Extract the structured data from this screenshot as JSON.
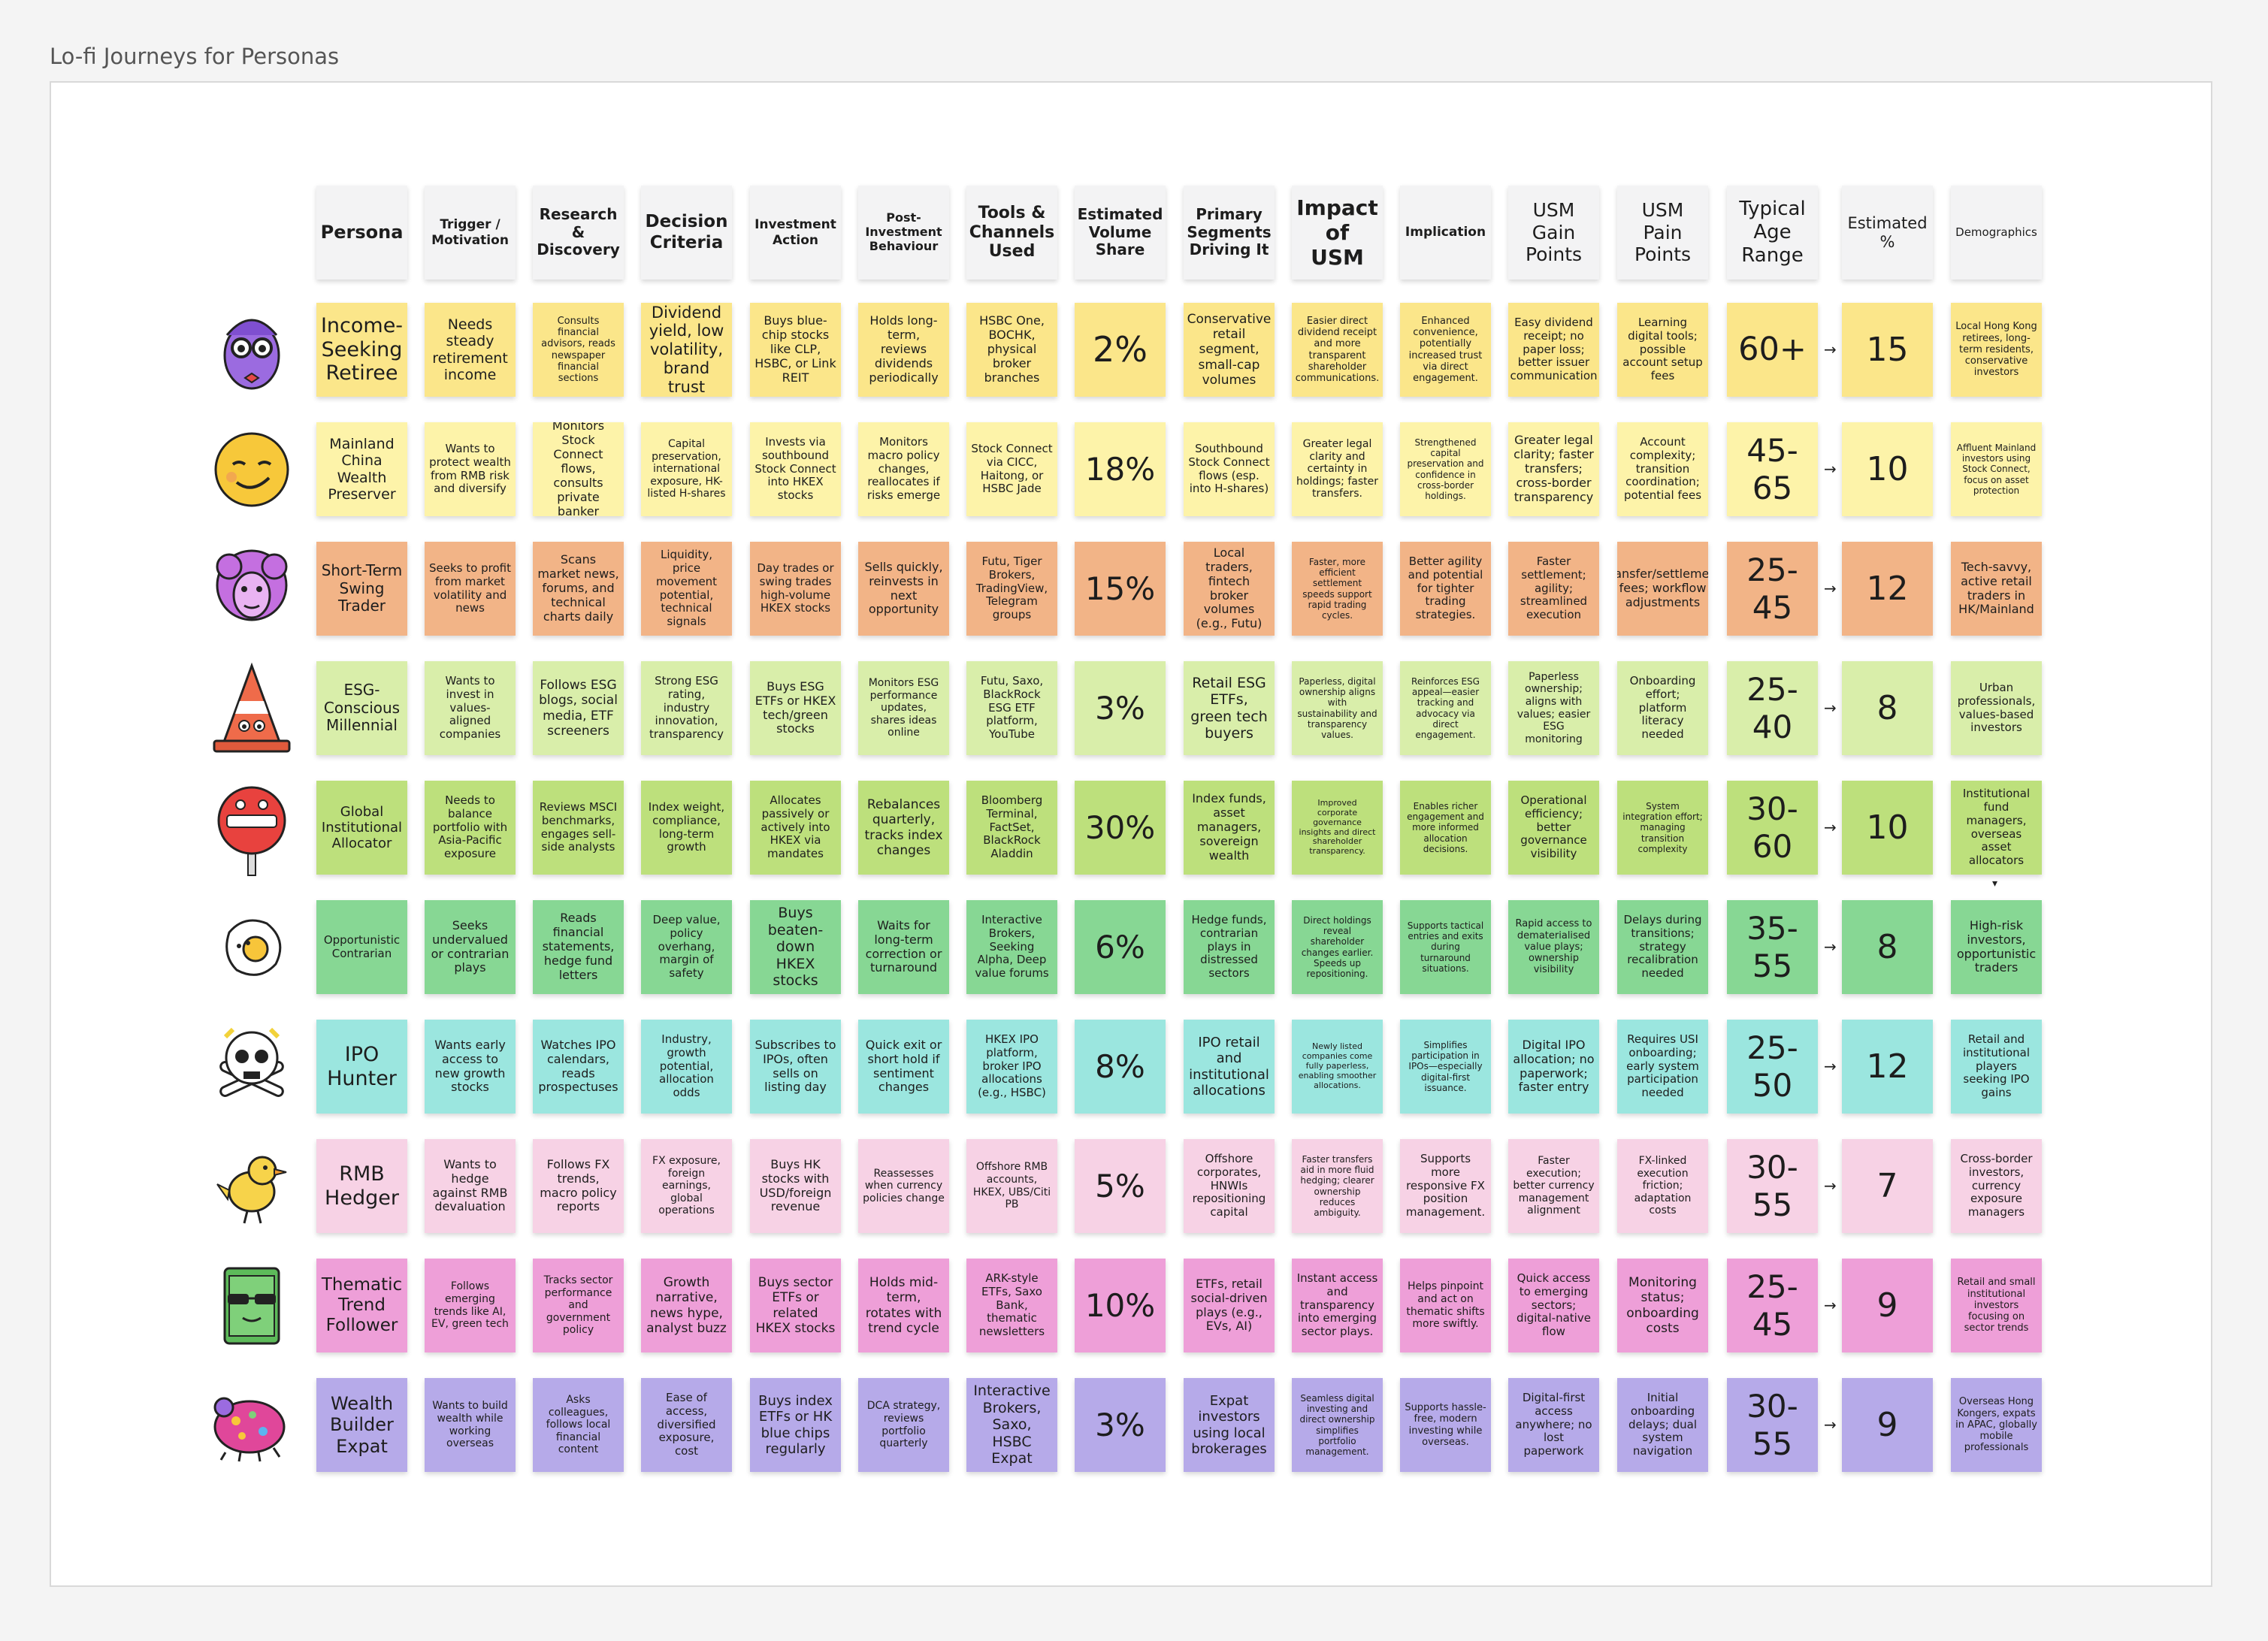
{
  "board": {
    "title": "Lo-fi Journeys for Personas"
  },
  "columns": [
    {
      "label": "Persona",
      "size": 24
    },
    {
      "label": "Trigger / Motivation",
      "size": 17
    },
    {
      "label": "Research & Discovery",
      "size": 20
    },
    {
      "label": "Decision Criteria",
      "size": 23
    },
    {
      "label": "Investment Action",
      "size": 17
    },
    {
      "label": "Post-Investment Behaviour",
      "size": 16
    },
    {
      "label": "Tools & Channels Used",
      "size": 22
    },
    {
      "label": "Estimated Volume Share",
      "size": 20
    },
    {
      "label": "Primary Segments Driving It",
      "size": 20
    },
    {
      "label": "Impact of USM",
      "size": 28
    },
    {
      "label": "Implication",
      "size": 17
    },
    {
      "label": "USM Gain Points",
      "size": 25
    },
    {
      "label": "USM Pain Points",
      "size": 25
    },
    {
      "label": "Typical Age Range",
      "size": 26
    },
    {
      "label": "Estimated %",
      "size": 21
    },
    {
      "label": "Demographics",
      "size": 15
    }
  ],
  "rows": [
    {
      "color": "#fbe68a",
      "avatar": "purple-owl-glasses-icon",
      "cells": [
        "Income-Seeking Retiree",
        "Needs steady retirement income",
        "Consults financial advisors, reads newspaper financial sections",
        "Dividend yield, low volatility, brand trust",
        "Buys blue-chip stocks like CLP, HSBC, or Link REIT",
        "Holds long-term, reviews dividends periodically",
        "HSBC One, BOCHK, physical broker branches",
        "2%",
        "Conservative retail segment, small-cap volumes",
        "Easier direct dividend receipt and more transparent shareholder communications.",
        "Enhanced convenience, potentially increased trust via direct engagement.",
        "Easy dividend receipt; no paper loss; better issuer communication",
        "Learning digital tools; possible account setup fees",
        "60+",
        "15",
        "Local Hong Kong retirees, long-term residents, conservative investors"
      ],
      "sizes": [
        27,
        19,
        13,
        21,
        16,
        16,
        16,
        46,
        17,
        13,
        13,
        15,
        15,
        43,
        44,
        13
      ]
    },
    {
      "color": "#fdf3a9",
      "avatar": "smiling-sun-face-icon",
      "cells": [
        "Mainland China Wealth Preserver",
        "Wants to protect wealth from RMB risk and diversify",
        "Monitors Stock Connect flows, consults private banker",
        "Capital preservation, international exposure, HK-listed H-shares",
        "Invests via southbound Stock Connect into HKEX stocks",
        "Monitors macro policy changes, reallocates if risks emerge",
        "Stock Connect via CICC, Haitong, or HSBC Jade",
        "18%",
        "Southbound Stock Connect flows (esp. into H-shares)",
        "Greater legal clarity and certainty in holdings; faster transfers.",
        "Strengthened capital preservation and confidence in cross-border holdings.",
        "Greater legal clarity; faster transfers; cross-border transparency",
        "Account complexity; transition coordination; potential fees",
        "45-65",
        "10",
        "Affluent Mainland investors using Stock Connect, focus on asset protection"
      ],
      "sizes": [
        19,
        15,
        16,
        14,
        15,
        15,
        15,
        42,
        15,
        14,
        12,
        16,
        15,
        42,
        44,
        12
      ]
    },
    {
      "color": "#f2b487",
      "avatar": "purple-sheep-icon",
      "cells": [
        "Short-Term Swing Trader",
        "Seeks to profit from market volatility and news",
        "Scans market news, forums, and technical charts daily",
        "Liquidity, price movement potential, technical signals",
        "Day trades or swing trades high-volume HKEX stocks",
        "Sells quickly, reinvests in next opportunity",
        "Futu, Tiger Brokers, TradingView, Telegram groups",
        "15%",
        "Local traders, fintech broker volumes (e.g., Futu)",
        "Faster, more efficient settlement speeds support rapid trading cycles.",
        "Better agility and potential for tighter trading strategies.",
        "Faster settlement; agility; streamlined execution",
        "Transfer/settlement fees; workflow adjustments",
        "25-45",
        "12",
        "Tech-savvy, active retail traders in HK/Mainland"
      ],
      "sizes": [
        20,
        15,
        16,
        15,
        15,
        16,
        15,
        42,
        16,
        12,
        15,
        15,
        16,
        42,
        44,
        16
      ]
    },
    {
      "color": "#d9eeaa",
      "avatar": "traffic-cone-icon",
      "cells": [
        "ESG-Conscious Millennial",
        "Wants to invest in values-aligned companies",
        "Follows ESG blogs, social media, ETF screeners",
        "Strong ESG rating, industry innovation, transparency",
        "Buys ESG ETFs or HKEX tech/green stocks",
        "Monitors ESG performance updates, shares ideas online",
        "Futu, Saxo, BlackRock ESG ETF platform, YouTube",
        "3%",
        "Retail ESG ETFs, green tech buyers",
        "Paperless, digital ownership aligns with sustainability and transparency values.",
        "Reinforces ESG appeal—easier tracking and advocacy via direct engagement.",
        "Paperless ownership; aligns with values; easier ESG monitoring",
        "Onboarding effort; platform literacy needed",
        "25-40",
        "8",
        "Urban professionals, values-based investors"
      ],
      "sizes": [
        20,
        15,
        17,
        15,
        16,
        14,
        15,
        42,
        19,
        12,
        12,
        14,
        15,
        42,
        44,
        15
      ]
    },
    {
      "color": "#bde07c",
      "avatar": "no-entry-sign-icon",
      "cells": [
        "Global Institutional Allocator",
        "Needs to balance portfolio with Asia-Pacific exposure",
        "Reviews MSCI benchmarks, engages sell-side analysts",
        "Index weight, compliance, long-term growth",
        "Allocates passively or actively into HKEX via mandates",
        "Rebalances quarterly, tracks index changes",
        "Bloomberg Terminal, FactSet, BlackRock Aladdin",
        "30%",
        "Index funds, asset managers, sovereign wealth",
        "Improved corporate governance insights and direct shareholder transparency.",
        "Enables richer engagement and more informed allocation decisions.",
        "Operational efficiency; better governance visibility",
        "System integration effort; managing transition complexity",
        "30-60",
        "10",
        "Institutional fund managers, overseas asset allocators"
      ],
      "sizes": [
        18,
        15,
        15,
        15,
        15,
        17,
        15,
        42,
        16,
        11,
        12,
        15,
        12,
        42,
        44,
        15
      ]
    },
    {
      "color": "#87d794",
      "avatar": "fried-egg-icon",
      "cells": [
        "Opportunistic Contrarian",
        "Seeks undervalued or contrarian plays",
        "Reads financial statements, hedge fund letters",
        "Deep value, policy overhang, margin of safety",
        "Buys beaten-down HKEX stocks",
        "Waits for long-term correction or turnaround",
        "Interactive Brokers, Seeking Alpha, Deep value forums",
        "6%",
        "Hedge funds, contrarian plays in distressed sectors",
        "Direct holdings reveal shareholder changes earlier. Speeds up repositioning.",
        "Supports tactical entries and exits during turnaround situations.",
        "Rapid access to dematerialised value plays; ownership visibility",
        "Delays during transitions; strategy recalibration needed",
        "35-55",
        "8",
        "High-risk investors, opportunistic traders"
      ],
      "sizes": [
        15,
        16,
        16,
        15,
        19,
        16,
        15,
        42,
        15,
        12,
        12,
        13,
        15,
        42,
        44,
        16
      ]
    },
    {
      "color": "#9be6df",
      "avatar": "skull-crossbones-icon",
      "cells": [
        "IPO Hunter",
        "Wants early access to new growth stocks",
        "Watches IPO calendars, reads prospectuses",
        "Industry, growth potential, allocation odds",
        "Subscribes to IPOs, often sells on listing day",
        "Quick exit or short hold if sentiment changes",
        "HKEX IPO platform, broker IPO allocations (e.g., HSBC)",
        "8%",
        "IPO retail and institutional allocations",
        "Newly listed companies come fully paperless, enabling smoother allocations.",
        "Simplifies participation in IPOs—especially digital-first issuance.",
        "Digital IPO allocation; no paperwork; faster entry",
        "Requires USI onboarding; early system participation needed",
        "25-50",
        "12",
        "Retail and institutional players seeking IPO gains"
      ],
      "sizes": [
        27,
        16,
        16,
        15,
        16,
        16,
        15,
        42,
        18,
        11,
        12,
        16,
        15,
        42,
        44,
        15
      ]
    },
    {
      "color": "#f7d2e5",
      "avatar": "yellow-bird-icon",
      "cells": [
        "RMB Hedger",
        "Wants to hedge against RMB devaluation",
        "Follows FX trends, macro policy reports",
        "FX exposure, foreign earnings, global operations",
        "Buys HK stocks with USD/foreign revenue",
        "Reassesses when currency policies change",
        "Offshore RMB accounts, HKEX, UBS/Citi PB",
        "5%",
        "Offshore corporates, HNWIs repositioning capital",
        "Faster transfers aid in more fluid hedging; clearer ownership reduces ambiguity.",
        "Supports more responsive FX position management.",
        "Faster execution; better currency management alignment",
        "FX-linked execution friction; adaptation costs",
        "30-55",
        "7",
        "Cross-border investors, currency exposure managers"
      ],
      "sizes": [
        27,
        16,
        16,
        14,
        16,
        14,
        14,
        42,
        15,
        12,
        15,
        14,
        14,
        42,
        44,
        15
      ]
    },
    {
      "color": "#ee9fd8",
      "avatar": "money-stack-sunglasses-icon",
      "cells": [
        "Thematic Trend Follower",
        "Follows emerging trends like AI, EV, green tech",
        "Tracks sector performance and government policy",
        "Growth narrative, news hype, analyst buzz",
        "Buys sector ETFs or related HKEX stocks",
        "Holds mid-term, rotates with trend cycle",
        "ARK-style ETFs, Saxo Bank, thematic newsletters",
        "10%",
        "ETFs, retail social-driven plays (e.g., EVs, AI)",
        "Instant access and transparency into emerging sector plays.",
        "Helps pinpoint and act on thematic shifts more swiftly.",
        "Quick access to emerging sectors; digital-native flow",
        "Monitoring status; onboarding costs",
        "25-45",
        "9",
        "Retail and small institutional investors focusing on sector trends"
      ],
      "sizes": [
        23,
        14,
        14,
        17,
        17,
        17,
        15,
        42,
        16,
        15,
        14,
        15,
        17,
        42,
        44,
        13
      ]
    },
    {
      "color": "#b6aae9",
      "avatar": "ladybug-beetle-icon",
      "cells": [
        "Wealth Builder Expat",
        "Wants to build wealth while working overseas",
        "Asks colleagues, follows local financial content",
        "Ease of access, diversified exposure, cost",
        "Buys index ETFs or HK blue chips regularly",
        "DCA strategy, reviews portfolio quarterly",
        "Interactive Brokers, Saxo, HSBC Expat",
        "3%",
        "Expat investors using local brokerages",
        "Seamless digital investing and direct ownership simplifies portfolio management.",
        "Supports hassle-free, modern investing while overseas.",
        "Digital-first access anywhere; no lost paperwork",
        "Initial onboarding delays; dual system navigation",
        "30-55",
        "9",
        "Overseas Hong Kongers, expats in APAC, globally mobile professionals"
      ],
      "sizes": [
        24,
        14,
        14,
        15,
        18,
        14,
        19,
        42,
        18,
        12,
        13,
        15,
        15,
        42,
        44,
        13
      ]
    }
  ],
  "arrow_glyph": "→",
  "small_arrow_glyph": "▾"
}
